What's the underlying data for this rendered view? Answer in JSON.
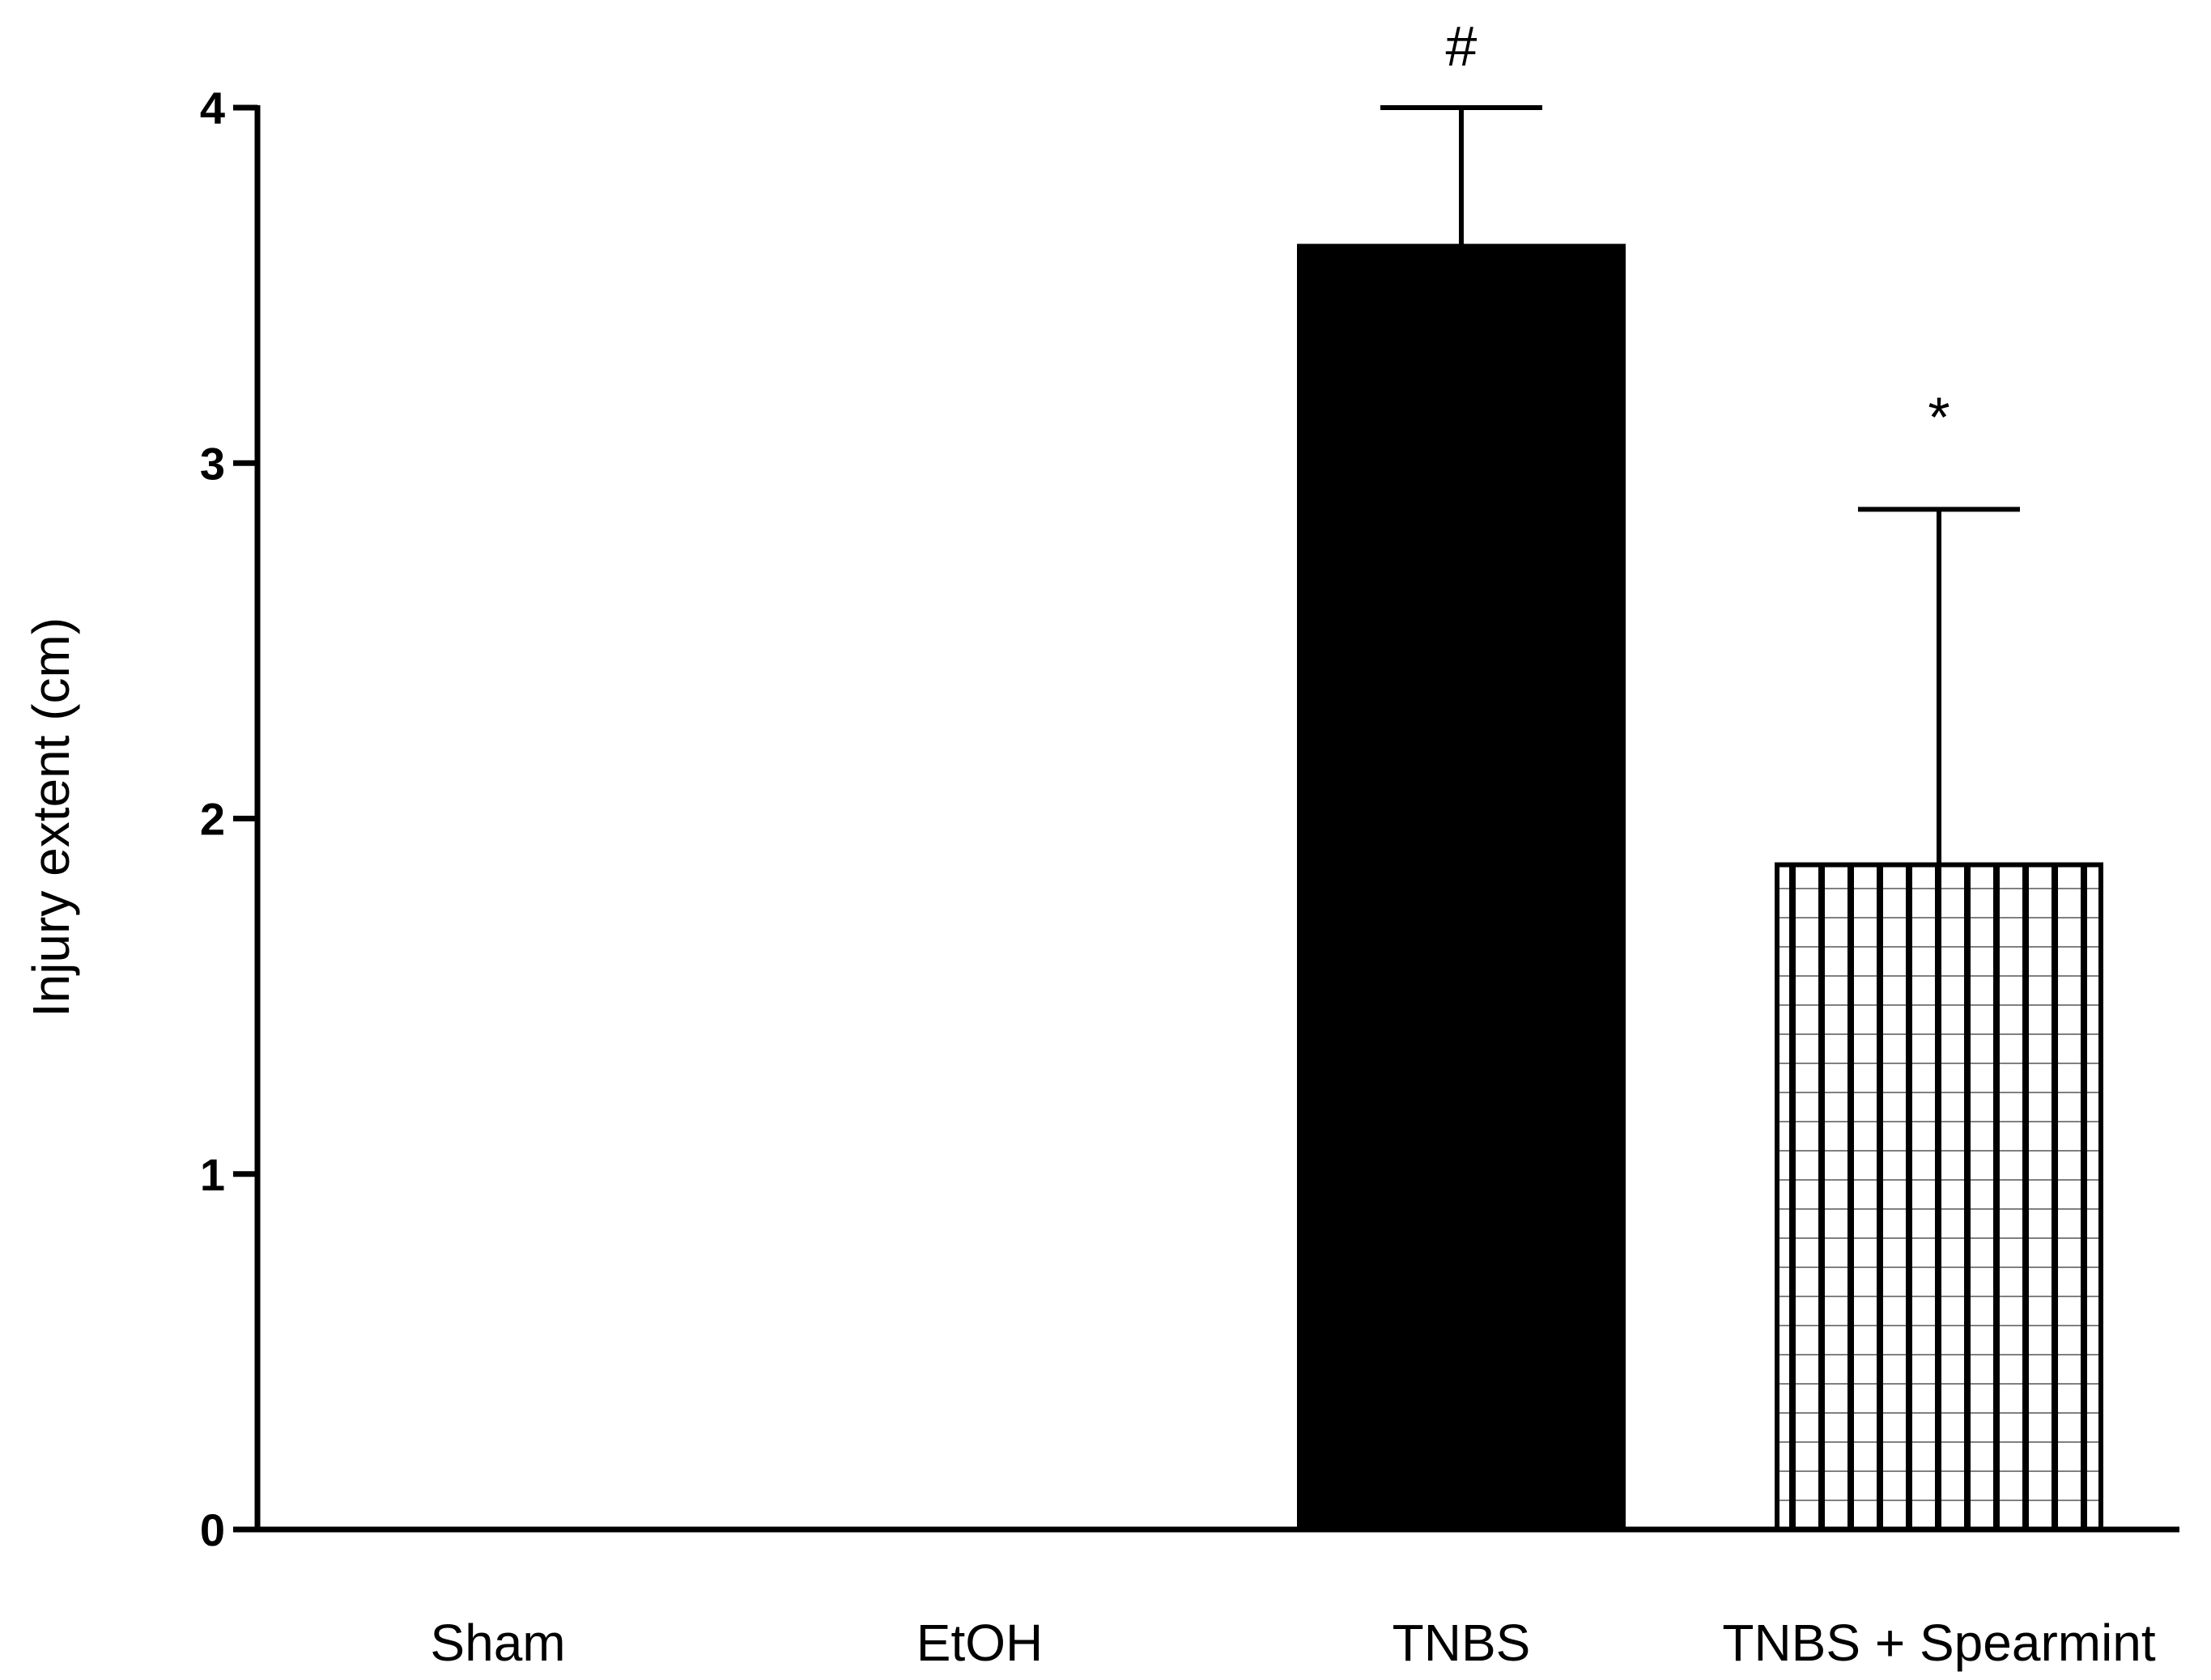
{
  "chart_data": {
    "type": "bar",
    "title": "",
    "xlabel": "",
    "ylabel": "Injury extent (cm)",
    "ylim": [
      0,
      4
    ],
    "yticks": [
      0,
      1,
      2,
      3,
      4
    ],
    "categories": [
      "Sham",
      "EtOH",
      "TNBS",
      "TNBS + Spearmint"
    ],
    "values": [
      0,
      0,
      3.61,
      1.87
    ],
    "errors": [
      0,
      0,
      0.39,
      1.0
    ],
    "fills": [
      "none",
      "none",
      "solid-black",
      "hatched-vertical"
    ],
    "annotations": [
      "",
      "",
      "#",
      "*"
    ],
    "grid": false,
    "legend": "none"
  }
}
